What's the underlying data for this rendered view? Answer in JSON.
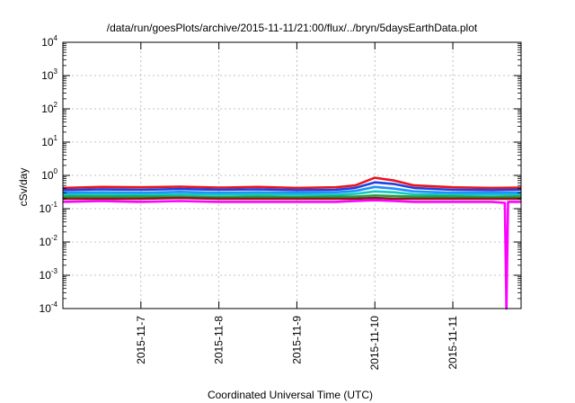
{
  "chart_data": {
    "type": "line",
    "title": "/data/run/goesPlots/archive/2015-11-11/21:00/flux/../bryn/5daysEarthData.plot",
    "xlabel": "Coordinated Universal Time (UTC)",
    "ylabel": "cSv/day",
    "y_scale": "log",
    "ylim": [
      0.0001,
      10000
    ],
    "y_ticks": [
      {
        "value": 0.0001,
        "base": "10",
        "exp": "-4"
      },
      {
        "value": 0.001,
        "base": "10",
        "exp": "-3"
      },
      {
        "value": 0.01,
        "base": "10",
        "exp": "-2"
      },
      {
        "value": 0.1,
        "base": "10",
        "exp": "-1"
      },
      {
        "value": 1,
        "base": "10",
        "exp": "0"
      },
      {
        "value": 10,
        "base": "10",
        "exp": "1"
      },
      {
        "value": 100,
        "base": "10",
        "exp": "2"
      },
      {
        "value": 1000,
        "base": "10",
        "exp": "3"
      },
      {
        "value": 10000,
        "base": "10",
        "exp": "4"
      }
    ],
    "xlim": [
      "2015-11-06T00:00",
      "2015-11-11T21:00"
    ],
    "x_ticks": [
      "2015-11-7",
      "2015-11-8",
      "2015-11-9",
      "2015-11-10",
      "2015-11-11"
    ],
    "x_tick_dates": [
      "2015-11-07",
      "2015-11-08",
      "2015-11-09",
      "2015-11-10",
      "2015-11-11"
    ],
    "grid": true,
    "legend": "none",
    "series": [
      {
        "color": "#e8141c",
        "x": [
          "2015-11-06T00:00",
          "2015-11-06T12:00",
          "2015-11-07T00:00",
          "2015-11-07T12:00",
          "2015-11-08T00:00",
          "2015-11-08T12:00",
          "2015-11-09T00:00",
          "2015-11-09T12:00",
          "2015-11-09T18:00",
          "2015-11-10T00:00",
          "2015-11-10T06:00",
          "2015-11-10T12:00",
          "2015-11-11T00:00",
          "2015-11-11T12:00",
          "2015-11-11T21:00"
        ],
        "y": [
          0.42,
          0.45,
          0.44,
          0.46,
          0.43,
          0.45,
          0.42,
          0.44,
          0.5,
          0.85,
          0.7,
          0.5,
          0.44,
          0.42,
          0.43
        ]
      },
      {
        "color": "#2040e0",
        "x": [
          "2015-11-06T00:00",
          "2015-11-06T12:00",
          "2015-11-07T00:00",
          "2015-11-07T12:00",
          "2015-11-08T00:00",
          "2015-11-08T12:00",
          "2015-11-09T00:00",
          "2015-11-09T12:00",
          "2015-11-09T18:00",
          "2015-11-10T00:00",
          "2015-11-10T06:00",
          "2015-11-10T12:00",
          "2015-11-11T00:00",
          "2015-11-11T12:00",
          "2015-11-11T21:00"
        ],
        "y": [
          0.36,
          0.38,
          0.37,
          0.39,
          0.37,
          0.38,
          0.36,
          0.37,
          0.42,
          0.62,
          0.55,
          0.42,
          0.37,
          0.36,
          0.37
        ]
      },
      {
        "color": "#1e90ff",
        "x": [
          "2015-11-06T00:00",
          "2015-11-06T12:00",
          "2015-11-07T00:00",
          "2015-11-07T12:00",
          "2015-11-08T00:00",
          "2015-11-08T12:00",
          "2015-11-09T00:00",
          "2015-11-09T12:00",
          "2015-11-09T18:00",
          "2015-11-10T00:00",
          "2015-11-10T06:00",
          "2015-11-10T12:00",
          "2015-11-11T00:00",
          "2015-11-11T12:00",
          "2015-11-11T21:00"
        ],
        "y": [
          0.3,
          0.31,
          0.3,
          0.32,
          0.3,
          0.31,
          0.3,
          0.31,
          0.34,
          0.45,
          0.4,
          0.33,
          0.3,
          0.3,
          0.3
        ]
      },
      {
        "color": "#10c8c0",
        "x": [
          "2015-11-06T00:00",
          "2015-11-06T12:00",
          "2015-11-07T00:00",
          "2015-11-07T12:00",
          "2015-11-08T00:00",
          "2015-11-08T12:00",
          "2015-11-09T00:00",
          "2015-11-09T12:00",
          "2015-11-09T18:00",
          "2015-11-10T00:00",
          "2015-11-10T06:00",
          "2015-11-10T12:00",
          "2015-11-11T00:00",
          "2015-11-11T12:00",
          "2015-11-11T21:00"
        ],
        "y": [
          0.26,
          0.27,
          0.26,
          0.27,
          0.26,
          0.27,
          0.26,
          0.26,
          0.28,
          0.33,
          0.31,
          0.27,
          0.26,
          0.26,
          0.26
        ]
      },
      {
        "color": "#20a040",
        "x": [
          "2015-11-06T00:00",
          "2015-11-06T12:00",
          "2015-11-07T00:00",
          "2015-11-07T12:00",
          "2015-11-08T00:00",
          "2015-11-08T12:00",
          "2015-11-09T00:00",
          "2015-11-09T12:00",
          "2015-11-09T18:00",
          "2015-11-10T00:00",
          "2015-11-10T06:00",
          "2015-11-10T12:00",
          "2015-11-11T00:00",
          "2015-11-11T12:00",
          "2015-11-11T21:00"
        ],
        "y": [
          0.23,
          0.23,
          0.23,
          0.23,
          0.22,
          0.23,
          0.22,
          0.23,
          0.23,
          0.25,
          0.24,
          0.23,
          0.23,
          0.22,
          0.23
        ]
      },
      {
        "color": "#8b1a1a",
        "x": [
          "2015-11-06T00:00",
          "2015-11-06T12:00",
          "2015-11-07T00:00",
          "2015-11-07T12:00",
          "2015-11-08T00:00",
          "2015-11-08T12:00",
          "2015-11-09T00:00",
          "2015-11-09T12:00",
          "2015-11-09T18:00",
          "2015-11-10T00:00",
          "2015-11-10T06:00",
          "2015-11-10T12:00",
          "2015-11-11T00:00",
          "2015-11-11T12:00",
          "2015-11-11T21:00"
        ],
        "y": [
          0.2,
          0.2,
          0.2,
          0.21,
          0.2,
          0.2,
          0.2,
          0.2,
          0.2,
          0.21,
          0.2,
          0.2,
          0.2,
          0.2,
          0.2
        ]
      },
      {
        "color": "#ff00ff",
        "x": [
          "2015-11-06T00:00",
          "2015-11-06T12:00",
          "2015-11-07T00:00",
          "2015-11-07T12:00",
          "2015-11-08T00:00",
          "2015-11-08T12:00",
          "2015-11-09T00:00",
          "2015-11-09T12:00",
          "2015-11-09T18:00",
          "2015-11-10T00:00",
          "2015-11-10T06:00",
          "2015-11-10T12:00",
          "2015-11-11T00:00",
          "2015-11-11T12:00",
          "2015-11-11T16:00",
          "2015-11-11T16:30",
          "2015-11-11T17:00",
          "2015-11-11T21:00"
        ],
        "y": [
          0.16,
          0.17,
          0.16,
          0.17,
          0.16,
          0.16,
          0.16,
          0.16,
          0.17,
          0.18,
          0.17,
          0.16,
          0.16,
          0.16,
          0.15,
          0.0001,
          0.16,
          0.16
        ]
      }
    ]
  }
}
